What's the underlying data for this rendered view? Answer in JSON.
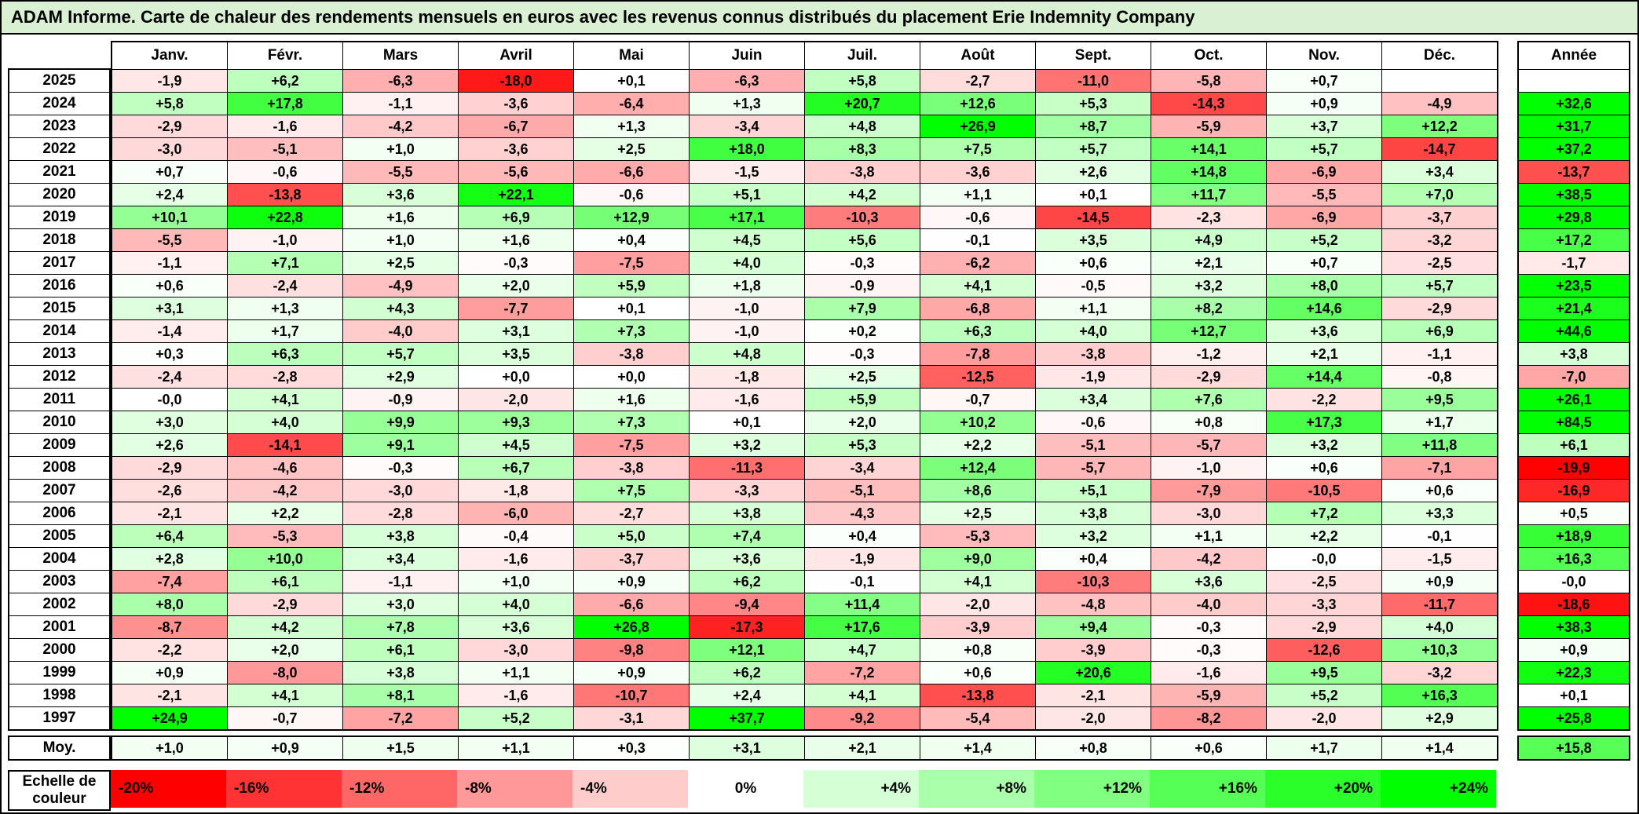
{
  "colors": {
    "title_background": "#D9F0D2",
    "negative_max": "#FF0000",
    "positive_max": "#00FF00",
    "neutral": "#FFFFFF"
  },
  "chart_data": {
    "type": "heatmap",
    "title": "ADAM Informe. Carte de chaleur des rendements mensuels en euros avec les revenus connus distribués du placement Erie Indemnity Company",
    "unit": "%",
    "columns": [
      "Janv.",
      "Févr.",
      "Mars",
      "Avril",
      "Mai",
      "Juin",
      "Juil.",
      "Août",
      "Sept.",
      "Oct.",
      "Nov.",
      "Déc."
    ],
    "annual_column_label": "Année",
    "rows": [
      {
        "label": "2025",
        "values": [
          "-1,9",
          "+6,2",
          "-6,3",
          "-18,0",
          "+0,1",
          "-6,3",
          "+5,8",
          "-2,7",
          "-11,0",
          "-5,8",
          "+0,7",
          ""
        ],
        "annual": ""
      },
      {
        "label": "2024",
        "values": [
          "+5,8",
          "+17,8",
          "-1,1",
          "-3,6",
          "-6,4",
          "+1,3",
          "+20,7",
          "+12,6",
          "+5,3",
          "-14,3",
          "+0,9",
          "-4,9"
        ],
        "annual": "+32,6"
      },
      {
        "label": "2023",
        "values": [
          "-2,9",
          "-1,6",
          "-4,2",
          "-6,7",
          "+1,3",
          "-3,4",
          "+4,8",
          "+26,9",
          "+8,7",
          "-5,9",
          "+3,7",
          "+12,2"
        ],
        "annual": "+31,7"
      },
      {
        "label": "2022",
        "values": [
          "-3,0",
          "-5,1",
          "+1,0",
          "-3,6",
          "+2,5",
          "+18,0",
          "+8,3",
          "+7,5",
          "+5,7",
          "+14,1",
          "+5,7",
          "-14,7"
        ],
        "annual": "+37,2"
      },
      {
        "label": "2021",
        "values": [
          "+0,7",
          "-0,6",
          "-5,5",
          "-5,6",
          "-6,6",
          "-1,5",
          "-3,8",
          "-3,6",
          "+2,6",
          "+14,8",
          "-6,9",
          "+3,4"
        ],
        "annual": "-13,7"
      },
      {
        "label": "2020",
        "values": [
          "+2,4",
          "-13,8",
          "+3,6",
          "+22,1",
          "-0,6",
          "+5,1",
          "+4,2",
          "+1,1",
          "+0,1",
          "+11,7",
          "-5,5",
          "+7,0"
        ],
        "annual": "+38,5"
      },
      {
        "label": "2019",
        "values": [
          "+10,1",
          "+22,8",
          "+1,6",
          "+6,9",
          "+12,9",
          "+17,1",
          "-10,3",
          "-0,6",
          "-14,5",
          "-2,3",
          "-6,9",
          "-3,7"
        ],
        "annual": "+29,8"
      },
      {
        "label": "2018",
        "values": [
          "-5,5",
          "-1,0",
          "+1,0",
          "+1,6",
          "+0,4",
          "+4,5",
          "+5,6",
          "-0,1",
          "+3,5",
          "+4,9",
          "+5,2",
          "-3,2"
        ],
        "annual": "+17,2"
      },
      {
        "label": "2017",
        "values": [
          "-1,1",
          "+7,1",
          "+2,5",
          "-0,3",
          "-7,5",
          "+4,0",
          "-0,3",
          "-6,2",
          "+0,6",
          "+2,1",
          "+0,7",
          "-2,5"
        ],
        "annual": "-1,7"
      },
      {
        "label": "2016",
        "values": [
          "+0,6",
          "-2,4",
          "-4,9",
          "+2,0",
          "+5,9",
          "+1,8",
          "-0,9",
          "+4,1",
          "-0,5",
          "+3,2",
          "+8,0",
          "+5,7"
        ],
        "annual": "+23,5"
      },
      {
        "label": "2015",
        "values": [
          "+3,1",
          "+1,3",
          "+4,3",
          "-7,7",
          "+0,1",
          "-1,0",
          "+7,9",
          "-6,8",
          "+1,1",
          "+8,2",
          "+14,6",
          "-2,9"
        ],
        "annual": "+21,4"
      },
      {
        "label": "2014",
        "values": [
          "-1,4",
          "+1,7",
          "-4,0",
          "+3,1",
          "+7,3",
          "-1,0",
          "+0,2",
          "+6,3",
          "+4,0",
          "+12,7",
          "+3,6",
          "+6,9"
        ],
        "annual": "+44,6"
      },
      {
        "label": "2013",
        "values": [
          "+0,3",
          "+6,3",
          "+5,7",
          "+3,5",
          "-3,8",
          "+4,8",
          "-0,3",
          "-7,8",
          "-3,8",
          "-1,2",
          "+2,1",
          "-1,1"
        ],
        "annual": "+3,8"
      },
      {
        "label": "2012",
        "values": [
          "-2,4",
          "-2,8",
          "+2,9",
          "+0,0",
          "+0,0",
          "-1,8",
          "+2,5",
          "-12,5",
          "-1,9",
          "-2,9",
          "+14,4",
          "-0,8"
        ],
        "annual": "-7,0"
      },
      {
        "label": "2011",
        "values": [
          "-0,0",
          "+4,1",
          "-0,9",
          "-2,0",
          "+1,6",
          "-1,6",
          "+5,9",
          "-0,7",
          "+3,4",
          "+7,6",
          "-2,2",
          "+9,5"
        ],
        "annual": "+26,1"
      },
      {
        "label": "2010",
        "values": [
          "+3,0",
          "+4,0",
          "+9,9",
          "+9,3",
          "+7,3",
          "+0,1",
          "+2,0",
          "+10,2",
          "-0,6",
          "+0,8",
          "+17,3",
          "+1,7"
        ],
        "annual": "+84,5"
      },
      {
        "label": "2009",
        "values": [
          "+2,6",
          "-14,1",
          "+9,1",
          "+4,5",
          "-7,5",
          "+3,2",
          "+5,3",
          "+2,2",
          "-5,1",
          "-5,7",
          "+3,2",
          "+11,8"
        ],
        "annual": "+6,1"
      },
      {
        "label": "2008",
        "values": [
          "-2,9",
          "-4,6",
          "-0,3",
          "+6,7",
          "-3,8",
          "-11,3",
          "-3,4",
          "+12,4",
          "-5,7",
          "-1,0",
          "+0,6",
          "-7,1"
        ],
        "annual": "-19,9"
      },
      {
        "label": "2007",
        "values": [
          "-2,6",
          "-4,2",
          "-3,0",
          "-1,8",
          "+7,5",
          "-3,3",
          "-5,1",
          "+8,6",
          "+5,1",
          "-7,9",
          "-10,5",
          "+0,6"
        ],
        "annual": "-16,9"
      },
      {
        "label": "2006",
        "values": [
          "-2,1",
          "+2,2",
          "-2,8",
          "-6,0",
          "-2,7",
          "+3,8",
          "-4,3",
          "+2,5",
          "+3,8",
          "-3,0",
          "+7,2",
          "+3,3"
        ],
        "annual": "+0,5"
      },
      {
        "label": "2005",
        "values": [
          "+6,4",
          "-5,3",
          "+3,8",
          "-0,4",
          "+5,0",
          "+7,4",
          "+0,4",
          "-5,3",
          "+3,2",
          "+1,1",
          "+2,2",
          "-0,1"
        ],
        "annual": "+18,9"
      },
      {
        "label": "2004",
        "values": [
          "+2,8",
          "+10,0",
          "+3,4",
          "-1,6",
          "-3,7",
          "+3,6",
          "-1,9",
          "+9,0",
          "+0,4",
          "-4,2",
          "-0,0",
          "-1,5"
        ],
        "annual": "+16,3"
      },
      {
        "label": "2003",
        "values": [
          "-7,4",
          "+6,1",
          "-1,1",
          "+1,0",
          "+0,9",
          "+6,2",
          "-0,1",
          "+4,1",
          "-10,3",
          "+3,6",
          "-2,5",
          "+0,9"
        ],
        "annual": "-0,0"
      },
      {
        "label": "2002",
        "values": [
          "+8,0",
          "-2,9",
          "+3,0",
          "+4,0",
          "-6,6",
          "-9,4",
          "+11,4",
          "-2,0",
          "-4,8",
          "-4,0",
          "-3,3",
          "-11,7"
        ],
        "annual": "-18,6"
      },
      {
        "label": "2001",
        "values": [
          "-8,7",
          "+4,2",
          "+7,8",
          "+3,6",
          "+26,8",
          "-17,3",
          "+17,6",
          "-3,9",
          "+9,4",
          "-0,3",
          "-2,9",
          "+4,0"
        ],
        "annual": "+38,3"
      },
      {
        "label": "2000",
        "values": [
          "-2,2",
          "+2,0",
          "+6,1",
          "-3,0",
          "-9,8",
          "+12,1",
          "+4,7",
          "+0,8",
          "-3,9",
          "-0,3",
          "-12,6",
          "+10,3"
        ],
        "annual": "+0,9"
      },
      {
        "label": "1999",
        "values": [
          "+0,9",
          "-8,0",
          "+3,8",
          "+1,1",
          "+0,9",
          "+6,2",
          "-7,2",
          "+0,6",
          "+20,6",
          "-1,6",
          "+9,5",
          "-3,2"
        ],
        "annual": "+22,3"
      },
      {
        "label": "1998",
        "values": [
          "-2,1",
          "+4,1",
          "+8,1",
          "-1,6",
          "-10,7",
          "+2,4",
          "+4,1",
          "-13,8",
          "-2,1",
          "-5,9",
          "+5,2",
          "+16,3"
        ],
        "annual": "+0,1"
      },
      {
        "label": "1997",
        "values": [
          "+24,9",
          "-0,7",
          "-7,2",
          "+5,2",
          "-3,1",
          "+37,7",
          "-9,2",
          "-5,4",
          "-2,0",
          "-8,2",
          "-2,0",
          "+2,9"
        ],
        "annual": "+25,8"
      }
    ],
    "average_row": {
      "label": "Moy.",
      "values": [
        "+1,0",
        "+0,9",
        "+1,5",
        "+1,1",
        "+0,3",
        "+3,1",
        "+2,1",
        "+1,4",
        "+0,8",
        "+0,6",
        "+1,7",
        "+1,4"
      ],
      "annual": "+15,8"
    },
    "colorscale": {
      "label": "Echelle de couleur",
      "min": -20,
      "max": 24,
      "stops": [
        {
          "label": "-20%",
          "value": -20
        },
        {
          "label": "-16%",
          "value": -16
        },
        {
          "label": "-12%",
          "value": -12
        },
        {
          "label": "-8%",
          "value": -8
        },
        {
          "label": "-4%",
          "value": -4
        },
        {
          "label": "0%",
          "value": 0
        },
        {
          "label": "+4%",
          "value": 4
        },
        {
          "label": "+8%",
          "value": 8
        },
        {
          "label": "+12%",
          "value": 12
        },
        {
          "label": "+16%",
          "value": 16
        },
        {
          "label": "+20%",
          "value": 20
        },
        {
          "label": "+24%",
          "value": 24
        }
      ]
    }
  }
}
